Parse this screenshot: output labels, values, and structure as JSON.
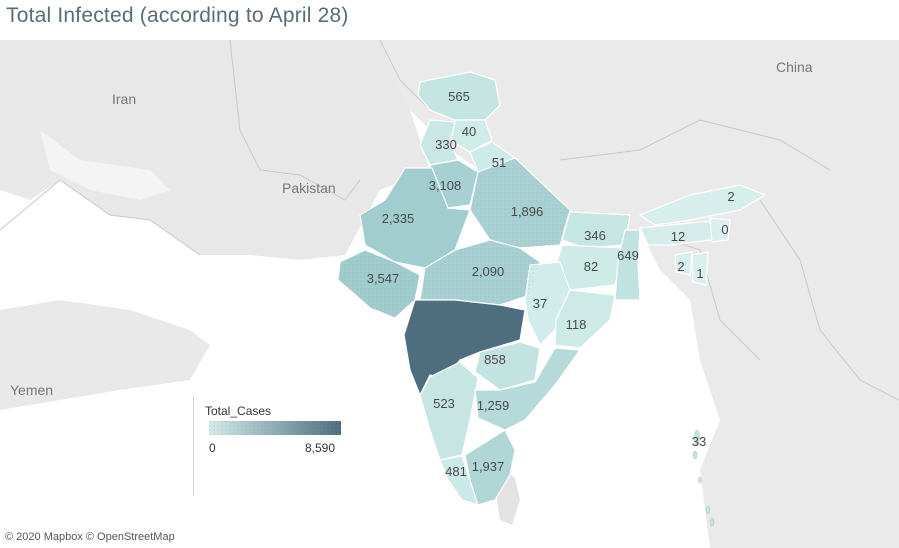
{
  "title": "Total Infected (according to April 28)",
  "attribution": "© 2020 Mapbox © OpenStreetMap",
  "countries": [
    "Iran",
    "Pakistan",
    "China",
    "Yemen"
  ],
  "legend": {
    "title": "Total_Cases",
    "min": "0",
    "max": "8,590",
    "color_low": "#d2ecea",
    "color_high": "#4e6d7e"
  },
  "states": [
    {
      "name": "Jammu and Kashmir",
      "value": "565"
    },
    {
      "name": "Himachal Pradesh",
      "value": "40"
    },
    {
      "name": "Punjab",
      "value": "330"
    },
    {
      "name": "Uttarakhand",
      "value": "51"
    },
    {
      "name": "Haryana/Delhi",
      "value": "3,108"
    },
    {
      "name": "Rajasthan",
      "value": "2,335"
    },
    {
      "name": "Uttar Pradesh",
      "value": "1,896"
    },
    {
      "name": "Bihar",
      "value": "346"
    },
    {
      "name": "Jharkhand",
      "value": "82"
    },
    {
      "name": "West Bengal",
      "value": "649"
    },
    {
      "name": "Gujarat",
      "value": "3,547"
    },
    {
      "name": "Madhya Pradesh",
      "value": "2,090"
    },
    {
      "name": "Chhattisgarh",
      "value": "37"
    },
    {
      "name": "Odisha",
      "value": "118"
    },
    {
      "name": "Maharashtra",
      "value": ""
    },
    {
      "name": "Telangana",
      "value": "858"
    },
    {
      "name": "Karnataka",
      "value": "523"
    },
    {
      "name": "Andhra Pradesh",
      "value": "1,259"
    },
    {
      "name": "Kerala",
      "value": "481"
    },
    {
      "name": "Tamil Nadu",
      "value": "1,937"
    },
    {
      "name": "Arunachal Pradesh",
      "value": "2"
    },
    {
      "name": "Assam",
      "value": "12"
    },
    {
      "name": "Nagaland",
      "value": "0"
    },
    {
      "name": "Tripura",
      "value": "2"
    },
    {
      "name": "Mizoram",
      "value": "1"
    },
    {
      "name": "Andaman and Nicobar",
      "value": "33"
    }
  ]
}
